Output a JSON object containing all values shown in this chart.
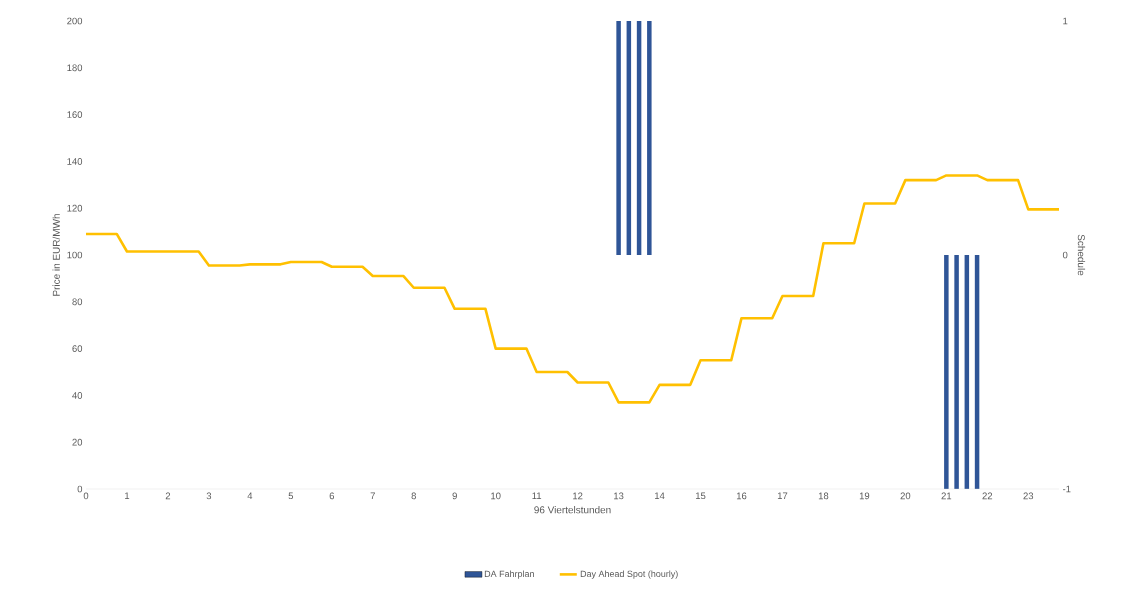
{
  "chart_data": {
    "type": "bar",
    "categories": [
      "0",
      null,
      null,
      null,
      "1",
      null,
      null,
      null,
      "2",
      null,
      null,
      null,
      "3",
      null,
      null,
      null,
      "4",
      null,
      null,
      null,
      "5",
      null,
      null,
      null,
      "6",
      null,
      null,
      null,
      "7",
      null,
      null,
      null,
      "8",
      null,
      null,
      null,
      "9",
      null,
      null,
      null,
      "10",
      null,
      null,
      null,
      "11",
      null,
      null,
      null,
      "12",
      null,
      null,
      null,
      "13",
      null,
      null,
      null,
      "14",
      null,
      null,
      null,
      "15",
      null,
      null,
      null,
      "16",
      null,
      null,
      null,
      "17",
      null,
      null,
      null,
      "18",
      null,
      null,
      null,
      "19",
      null,
      null,
      null,
      "20",
      null,
      null,
      null,
      "21",
      null,
      null,
      null,
      "22",
      null,
      null,
      null,
      "23",
      null,
      null,
      null
    ],
    "series": [
      {
        "name": "DA Fahrplan",
        "axis": "y2",
        "color": "#2f5597",
        "values": [
          null,
          null,
          null,
          null,
          null,
          null,
          null,
          null,
          null,
          null,
          null,
          null,
          null,
          null,
          null,
          null,
          null,
          null,
          null,
          null,
          null,
          null,
          null,
          null,
          null,
          null,
          null,
          null,
          null,
          null,
          null,
          null,
          null,
          null,
          null,
          null,
          null,
          null,
          null,
          null,
          null,
          null,
          null,
          null,
          null,
          null,
          null,
          null,
          null,
          null,
          null,
          null,
          1,
          1,
          1,
          1,
          null,
          null,
          null,
          null,
          null,
          null,
          null,
          null,
          null,
          null,
          null,
          null,
          null,
          null,
          null,
          null,
          null,
          null,
          null,
          null,
          null,
          null,
          null,
          null,
          null,
          null,
          null,
          null,
          -1,
          -1,
          -1,
          -1,
          null,
          null,
          null,
          null,
          null,
          null,
          null,
          null
        ]
      },
      {
        "name": "Day Ahead Spot (hourly)",
        "type": "line",
        "color": "#ffc000",
        "values": [
          109,
          109,
          109,
          109,
          101.5,
          101.5,
          101.5,
          101.5,
          101.5,
          101.5,
          101.5,
          101.5,
          95.5,
          95.5,
          95.5,
          95.5,
          96,
          96,
          96,
          96,
          97,
          97,
          97,
          97,
          95,
          95,
          95,
          95,
          91,
          91,
          91,
          91,
          86,
          86,
          86,
          86,
          77,
          77,
          77,
          77,
          60,
          60,
          60,
          60,
          50,
          50,
          50,
          50,
          45.5,
          45.5,
          45.5,
          45.5,
          37,
          37,
          37,
          37,
          44.5,
          44.5,
          44.5,
          44.5,
          55,
          55,
          55,
          55,
          73,
          73,
          73,
          73,
          82.5,
          82.5,
          82.5,
          82.5,
          105,
          105,
          105,
          105,
          122,
          122,
          122,
          122,
          132,
          132,
          132,
          132,
          134,
          134,
          134,
          134,
          132,
          132,
          132,
          132,
          119.5,
          119.5,
          119.5,
          119.5
        ]
      }
    ],
    "xlabel": "96 Viertelstunden",
    "ylabel": "Price in EUR/MWh",
    "y2label": "Schedule",
    "ylim": [
      0,
      200
    ],
    "yticks": [
      0,
      20,
      40,
      60,
      80,
      100,
      120,
      140,
      160,
      180,
      200
    ],
    "y2lim": [
      -1,
      1
    ],
    "y2ticks": [
      -1,
      0,
      1
    ],
    "legend": "bottom"
  }
}
